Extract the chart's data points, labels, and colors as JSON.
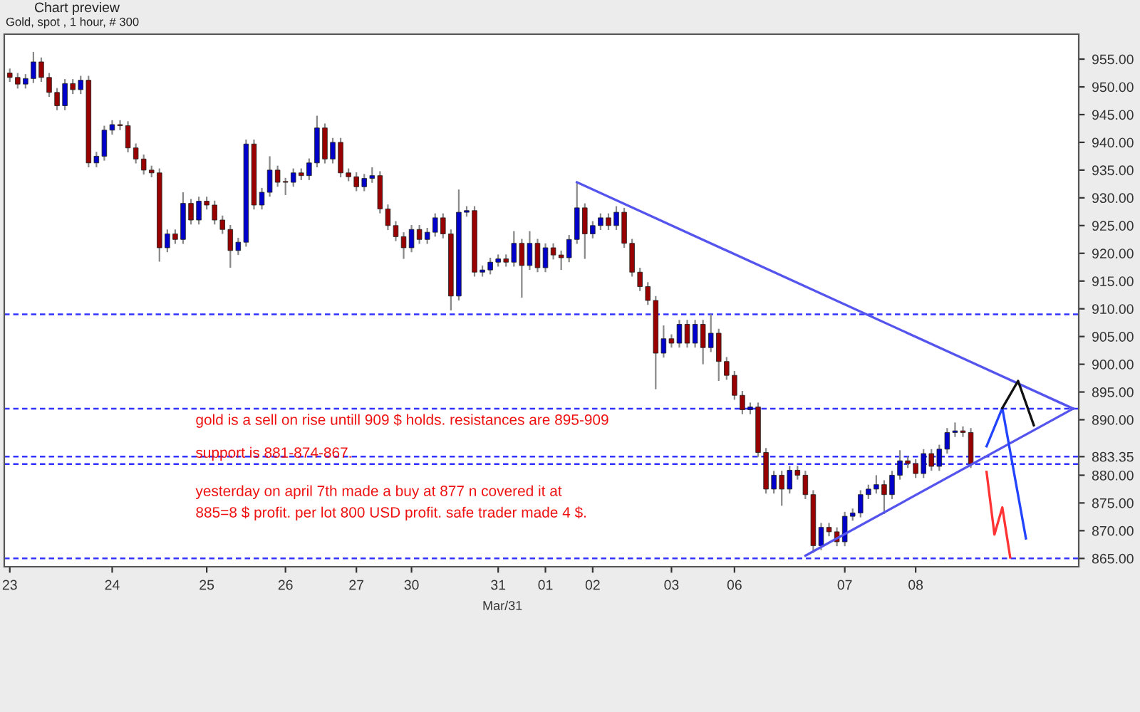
{
  "chart_data": {
    "type": "candlestick",
    "title": "Chart preview",
    "subtitle": "Gold, spot , 1 hour, # 300",
    "categories": [
      "23",
      null,
      null,
      null,
      null,
      null,
      null,
      null,
      null,
      null,
      null,
      null,
      null,
      "24",
      null,
      null,
      null,
      null,
      null,
      null,
      null,
      null,
      null,
      null,
      null,
      "25",
      null,
      null,
      null,
      null,
      null,
      null,
      null,
      null,
      null,
      "26",
      null,
      null,
      null,
      null,
      null,
      null,
      null,
      null,
      "27",
      null,
      null,
      null,
      null,
      null,
      null,
      "30",
      null,
      null,
      null,
      null,
      null,
      null,
      null,
      null,
      null,
      null,
      "31",
      null,
      null,
      null,
      null,
      null,
      "01",
      null,
      null,
      null,
      null,
      null,
      "02",
      null,
      null,
      null,
      null,
      null,
      null,
      null,
      null,
      null,
      "03",
      null,
      null,
      null,
      null,
      null,
      null,
      null,
      "06",
      null,
      null,
      null,
      null,
      null,
      null,
      null,
      null,
      null,
      null,
      null,
      null,
      null,
      "07",
      null,
      null,
      null,
      null,
      null,
      null,
      null,
      null,
      "08",
      null,
      null,
      null,
      null,
      null,
      null,
      null,
      null,
      null,
      null,
      null,
      null,
      null,
      null,
      null,
      null,
      null,
      null,
      null,
      null
    ],
    "ylim": [
      863.5,
      959.5
    ],
    "yticks": [
      {
        "value": 865,
        "label": "865.00"
      },
      {
        "value": 870,
        "label": "870.00"
      },
      {
        "value": 875,
        "label": "875.00"
      },
      {
        "value": 880,
        "label": "880.00"
      },
      {
        "value": 883.35,
        "label": "883.35"
      },
      {
        "value": 890,
        "label": "890.00"
      },
      {
        "value": 895,
        "label": "895.00"
      },
      {
        "value": 900,
        "label": "900.00"
      },
      {
        "value": 905,
        "label": "905.00"
      },
      {
        "value": 910,
        "label": "910.00"
      },
      {
        "value": 915,
        "label": "915.00"
      },
      {
        "value": 920,
        "label": "920.00"
      },
      {
        "value": 925,
        "label": "925.00"
      },
      {
        "value": 930,
        "label": "930.00"
      },
      {
        "value": 935,
        "label": "935.00"
      },
      {
        "value": 940,
        "label": "940.00"
      },
      {
        "value": 945,
        "label": "945.00"
      },
      {
        "value": 950,
        "label": "950.00"
      },
      {
        "value": 955,
        "label": "955.00"
      }
    ],
    "grid": false,
    "legend": false,
    "ref_lines": [
      {
        "axis": "y",
        "value": 909,
        "color": "#3333ff",
        "line_style": "dashed"
      },
      {
        "axis": "y",
        "value": 892,
        "color": "#3333ff",
        "line_style": "dashed"
      },
      {
        "axis": "y",
        "value": 883.35,
        "color": "#3333ff",
        "line_style": "dashed"
      },
      {
        "axis": "y",
        "value": 882,
        "color": "#3333ff",
        "line_style": "dashed"
      },
      {
        "axis": "y",
        "value": 865,
        "color": "#3333ff",
        "line_style": "dashed"
      }
    ],
    "annotations": [
      "Mar/31",
      "gold is a sell on rise untill 909 $ holds. resistances are 895-909",
      "support is 881-874-867.",
      "yesterday on april 7th made a buy at 877 n covered it at",
      "885=8 $ profit. per lot 800 USD profit. safe trader made 4 $."
    ],
    "series": [
      {
        "colors": [
          "#990000",
          "#990000",
          "#0000cc",
          "#0000cc",
          "#990000",
          "#990000",
          "#990000",
          "#0000cc",
          "#990000",
          "#0000cc",
          "#990000",
          "#0000cc",
          "#0000cc",
          "#0000cc",
          "#990000",
          "#990000",
          "#990000",
          "#990000",
          "#990000",
          "#990000",
          "#0000cc",
          "#990000",
          "#0000cc",
          "#990000",
          "#0000cc",
          "#990000",
          "#990000",
          "#990000",
          "#990000",
          "#0000cc",
          "#0000cc",
          "#990000",
          "#0000cc",
          "#0000cc",
          "#990000",
          "#990000",
          "#0000cc",
          "#990000",
          "#0000cc",
          "#0000cc",
          "#990000",
          "#0000cc",
          "#990000",
          "#990000",
          "#990000",
          "#0000cc",
          "#0000cc",
          "#990000",
          "#990000",
          "#990000",
          "#990000",
          "#0000cc",
          "#990000",
          "#0000cc",
          "#0000cc",
          "#990000",
          "#990000",
          "#0000cc",
          "#0000cc",
          "#990000",
          "#0000cc",
          "#0000cc",
          "#0000cc",
          "#990000",
          "#0000cc",
          "#990000",
          "#0000cc",
          "#990000",
          "#0000cc",
          "#990000",
          "#990000",
          "#0000cc",
          "#0000cc",
          "#990000",
          "#0000cc",
          "#0000cc",
          "#990000",
          "#0000cc",
          "#990000",
          "#990000",
          "#990000",
          "#990000",
          "#990000",
          "#0000cc",
          "#990000",
          "#0000cc",
          "#990000",
          "#0000cc",
          "#990000",
          "#0000cc",
          "#990000",
          "#990000",
          "#990000",
          "#990000",
          "#0000cc",
          "#990000",
          "#990000",
          "#0000cc",
          "#990000",
          "#0000cc",
          "#990000",
          "#990000",
          "#990000",
          "#0000cc",
          "#990000",
          "#990000",
          "#0000cc",
          "#0000cc",
          "#0000cc",
          "#0000cc",
          "#0000cc",
          "#990000",
          "#0000cc",
          "#0000cc",
          "#990000",
          "#990000",
          "#0000cc",
          "#990000",
          "#0000cc",
          "#0000cc",
          "#0000cc",
          "#990000",
          "#990000",
          null,
          null,
          null,
          null,
          null,
          null,
          null,
          null,
          null,
          null,
          null,
          null,
          null
        ],
        "ohlc": [
          [
            952.5,
            953.3,
            950.9,
            951.7
          ],
          [
            951.7,
            952.5,
            949.7,
            950.5
          ],
          [
            950.5,
            952.3,
            949.7,
            951.5
          ],
          [
            951.5,
            956.3,
            950.7,
            954.5
          ],
          [
            954.5,
            955.3,
            950.9,
            951.7
          ],
          [
            951.7,
            952.5,
            948.2,
            949
          ],
          [
            949,
            949.8,
            945.8,
            946.6
          ],
          [
            946.6,
            951.4,
            945.8,
            950.6
          ],
          [
            950.6,
            951.4,
            948.7,
            949.5
          ],
          [
            949.5,
            952,
            948.7,
            951.2
          ],
          [
            951.2,
            952,
            935.5,
            936.3
          ],
          [
            936.3,
            938.3,
            935.5,
            937.5
          ],
          [
            937.5,
            943,
            936.7,
            942.2
          ],
          [
            942.2,
            944,
            941.4,
            943.2
          ],
          [
            943.2,
            944,
            942.2,
            943
          ],
          [
            943,
            943.8,
            938.2,
            939
          ],
          [
            939,
            939.8,
            936.2,
            937
          ],
          [
            937,
            937.8,
            934.2,
            935
          ],
          [
            935,
            935.8,
            933.7,
            934.5
          ],
          [
            934.5,
            935.3,
            918.5,
            921
          ],
          [
            921,
            924.3,
            920.2,
            923.5
          ],
          [
            923.5,
            924.3,
            921.7,
            922.5
          ],
          [
            922.5,
            931,
            921.7,
            929
          ],
          [
            929,
            929.8,
            925.2,
            926
          ],
          [
            926,
            930.2,
            925.2,
            929.4
          ],
          [
            929.4,
            930.2,
            927.9,
            928.7
          ],
          [
            928.7,
            929.5,
            925.2,
            926
          ],
          [
            926,
            926.8,
            923.5,
            924.3
          ],
          [
            924.3,
            925.1,
            917.4,
            920.5
          ],
          [
            920.5,
            922.8,
            919.7,
            922
          ],
          [
            922,
            940.5,
            921.2,
            939.7
          ],
          [
            939.7,
            940.5,
            927.9,
            928.7
          ],
          [
            928.7,
            931.8,
            927.9,
            931
          ],
          [
            931,
            937.5,
            930.2,
            935
          ],
          [
            935,
            935.8,
            932,
            932.8
          ],
          [
            932.8,
            933.6,
            930.5,
            932.8
          ],
          [
            932.8,
            935.3,
            932,
            934.5
          ],
          [
            934.5,
            935.3,
            933.2,
            934
          ],
          [
            934,
            937.1,
            933.2,
            936.3
          ],
          [
            936.3,
            944.8,
            935.5,
            942.6
          ],
          [
            942.6,
            943.4,
            936.2,
            937
          ],
          [
            937,
            940.8,
            936.2,
            940
          ],
          [
            940,
            940.8,
            933.7,
            934.5
          ],
          [
            934.5,
            935.3,
            933,
            933.8
          ],
          [
            933.8,
            934.6,
            931.2,
            932
          ],
          [
            932,
            934.3,
            931.2,
            933.5
          ],
          [
            933.5,
            935.5,
            932.7,
            934
          ],
          [
            934,
            934.8,
            927.2,
            928
          ],
          [
            928,
            928.8,
            924.2,
            925
          ],
          [
            925,
            925.8,
            922.2,
            923
          ],
          [
            923,
            923.8,
            919,
            921
          ],
          [
            921,
            925.1,
            920.2,
            924.3
          ],
          [
            924.3,
            925.1,
            921.7,
            922.5
          ],
          [
            922.5,
            924.6,
            921.7,
            923.8
          ],
          [
            923.8,
            927.2,
            923,
            926.4
          ],
          [
            926.4,
            927.2,
            922.7,
            923.5
          ],
          [
            923.5,
            924.3,
            909.7,
            912.3
          ],
          [
            912.3,
            931.5,
            911.5,
            927.4
          ],
          [
            927.4,
            928.5,
            926.6,
            927.7
          ],
          [
            927.7,
            928.5,
            915.8,
            916.6
          ],
          [
            916.6,
            917.8,
            915.8,
            917
          ],
          [
            917,
            919.2,
            916.2,
            918.4
          ],
          [
            918.4,
            919.8,
            917.6,
            919
          ],
          [
            919,
            919.8,
            917.6,
            918.4
          ],
          [
            918.4,
            924,
            917.6,
            921.8
          ],
          [
            921.8,
            922.6,
            912,
            917.8
          ],
          [
            917.8,
            924,
            917,
            921.8
          ],
          [
            921.8,
            922.6,
            916.6,
            917.4
          ],
          [
            917.4,
            921.8,
            916.6,
            921
          ],
          [
            921,
            921.8,
            918.9,
            919.7
          ],
          [
            919.7,
            920.5,
            917,
            919.2
          ],
          [
            919.2,
            923.3,
            918.4,
            922.5
          ],
          [
            922.5,
            932.8,
            921.7,
            928.2
          ],
          [
            928.2,
            929,
            919,
            923.5
          ],
          [
            923.5,
            925.8,
            922.7,
            925
          ],
          [
            925,
            927.2,
            924.2,
            926.4
          ],
          [
            926.4,
            927.2,
            924.2,
            925
          ],
          [
            925,
            928.5,
            924.2,
            927.4
          ],
          [
            927.4,
            928.2,
            921,
            921.8
          ],
          [
            921.8,
            922.6,
            915.8,
            916.6
          ],
          [
            916.6,
            917.4,
            913.2,
            914
          ],
          [
            914,
            914.8,
            910.7,
            911.5
          ],
          [
            911.5,
            912.3,
            895.5,
            902
          ],
          [
            902,
            907,
            901.2,
            904.6
          ],
          [
            904.6,
            905.4,
            903,
            903.8
          ],
          [
            903.8,
            908,
            903,
            907.2
          ],
          [
            907.2,
            908,
            903,
            903.8
          ],
          [
            903.8,
            908,
            903,
            907.2
          ],
          [
            907.2,
            908,
            900,
            903
          ],
          [
            903,
            909,
            902.2,
            905.6
          ],
          [
            905.6,
            906.4,
            897,
            900.5
          ],
          [
            900.5,
            901.3,
            897.2,
            898
          ],
          [
            898,
            898.8,
            893.6,
            894.4
          ],
          [
            894.4,
            895.2,
            891,
            891.8
          ],
          [
            891.8,
            893.1,
            891,
            892.3
          ],
          [
            892.3,
            893.1,
            883.3,
            884.1
          ],
          [
            884.1,
            884.9,
            876.7,
            877.5
          ],
          [
            877.5,
            880.8,
            876.7,
            880
          ],
          [
            880,
            880.8,
            874.5,
            877.5
          ],
          [
            877.5,
            881.7,
            876.7,
            880.9
          ],
          [
            880.9,
            881.7,
            879.2,
            880
          ],
          [
            880,
            880.8,
            875.7,
            876.5
          ],
          [
            876.5,
            877.3,
            866,
            867.3
          ],
          [
            867.3,
            871.4,
            866.5,
            870.6
          ],
          [
            870.6,
            871.4,
            869,
            869.8
          ],
          [
            869.8,
            870.6,
            867.2,
            868
          ],
          [
            868,
            873.4,
            867.2,
            872.6
          ],
          [
            872.6,
            874,
            871.8,
            873.2
          ],
          [
            873.2,
            877.3,
            872.4,
            876.5
          ],
          [
            876.5,
            878.3,
            875.7,
            877.5
          ],
          [
            877.5,
            880,
            876.7,
            878.3
          ],
          [
            878.3,
            879.1,
            873,
            876.5
          ],
          [
            876.5,
            880.8,
            875.7,
            880
          ],
          [
            880,
            884.5,
            879.2,
            882.6
          ],
          [
            882.6,
            883.4,
            881.3,
            882.1
          ],
          [
            882.1,
            882.9,
            879.5,
            880.3
          ],
          [
            880.3,
            884.7,
            879.5,
            883.9
          ],
          [
            883.9,
            884.7,
            880.8,
            881.6
          ],
          [
            881.6,
            885.5,
            880.8,
            884.7
          ],
          [
            884.7,
            888.5,
            883.9,
            887.7
          ],
          [
            887.7,
            889.5,
            886.9,
            888
          ],
          [
            888,
            888.8,
            886.9,
            887.7
          ],
          [
            887.7,
            888.5,
            881.3,
            882.1
          ],
          null,
          null,
          null,
          null,
          null,
          null,
          null,
          null,
          null,
          null,
          null,
          null,
          null
        ]
      },
      {
        "type": "line",
        "color": "#5555ee",
        "values": [
          null,
          null,
          null,
          null,
          null,
          null,
          null,
          null,
          null,
          null,
          null,
          null,
          null,
          null,
          null,
          null,
          null,
          null,
          null,
          null,
          null,
          null,
          null,
          null,
          null,
          null,
          null,
          null,
          null,
          null,
          null,
          null,
          null,
          null,
          null,
          null,
          null,
          null,
          null,
          null,
          null,
          null,
          null,
          null,
          null,
          null,
          null,
          null,
          null,
          null,
          null,
          null,
          null,
          null,
          null,
          null,
          null,
          null,
          null,
          null,
          null,
          null,
          null,
          null,
          null,
          null,
          null,
          null,
          null,
          null,
          null,
          null,
          932.8,
          null,
          null,
          null,
          null,
          null,
          null,
          null,
          null,
          null,
          null,
          null,
          null,
          null,
          null,
          null,
          null,
          null,
          null,
          null,
          null,
          null,
          null,
          null,
          null,
          null,
          null,
          null,
          null,
          null,
          null,
          null,
          null,
          null,
          null,
          null,
          null,
          null,
          null,
          null,
          null,
          null,
          null,
          null,
          null,
          null,
          null,
          null,
          null,
          null,
          null,
          null,
          null,
          null,
          null,
          null,
          null,
          null,
          null,
          null,
          null,
          null,
          null,
          892
        ]
      },
      {
        "type": "line",
        "color": "#5555ee",
        "values": [
          null,
          null,
          null,
          null,
          null,
          null,
          null,
          null,
          null,
          null,
          null,
          null,
          null,
          null,
          null,
          null,
          null,
          null,
          null,
          null,
          null,
          null,
          null,
          null,
          null,
          null,
          null,
          null,
          null,
          null,
          null,
          null,
          null,
          null,
          null,
          null,
          null,
          null,
          null,
          null,
          null,
          null,
          null,
          null,
          null,
          null,
          null,
          null,
          null,
          null,
          null,
          null,
          null,
          null,
          null,
          null,
          null,
          null,
          null,
          null,
          null,
          null,
          null,
          null,
          null,
          null,
          null,
          null,
          null,
          null,
          null,
          null,
          null,
          null,
          null,
          null,
          null,
          null,
          null,
          null,
          null,
          null,
          null,
          null,
          null,
          null,
          null,
          null,
          null,
          null,
          null,
          null,
          null,
          null,
          null,
          null,
          null,
          null,
          null,
          null,
          null,
          865.5,
          null,
          null,
          null,
          null,
          null,
          null,
          null,
          null,
          null,
          null,
          null,
          null,
          null,
          null,
          null,
          null,
          null,
          null,
          null,
          null,
          null,
          null,
          null,
          null,
          null,
          null,
          null,
          null,
          null,
          null,
          null,
          null,
          null,
          892
        ]
      },
      {
        "type": "line",
        "color": "#2244ff",
        "values": [
          null,
          null,
          null,
          null,
          null,
          null,
          null,
          null,
          null,
          null,
          null,
          null,
          null,
          null,
          null,
          null,
          null,
          null,
          null,
          null,
          null,
          null,
          null,
          null,
          null,
          null,
          null,
          null,
          null,
          null,
          null,
          null,
          null,
          null,
          null,
          null,
          null,
          null,
          null,
          null,
          null,
          null,
          null,
          null,
          null,
          null,
          null,
          null,
          null,
          null,
          null,
          null,
          null,
          null,
          null,
          null,
          null,
          null,
          null,
          null,
          null,
          null,
          null,
          null,
          null,
          null,
          null,
          null,
          null,
          null,
          null,
          null,
          null,
          null,
          null,
          null,
          null,
          null,
          null,
          null,
          null,
          null,
          null,
          null,
          null,
          null,
          null,
          null,
          null,
          null,
          null,
          null,
          null,
          null,
          null,
          null,
          null,
          null,
          null,
          null,
          null,
          null,
          null,
          null,
          null,
          null,
          null,
          null,
          null,
          null,
          null,
          null,
          null,
          null,
          null,
          null,
          null,
          null,
          null,
          null,
          null,
          null,
          null,
          null,
          885.2,
          null,
          892.1,
          null,
          null,
          868.6,
          null,
          null,
          null,
          null,
          null,
          null
        ]
      },
      {
        "type": "line",
        "color": "#111111",
        "values": [
          null,
          null,
          null,
          null,
          null,
          null,
          null,
          null,
          null,
          null,
          null,
          null,
          null,
          null,
          null,
          null,
          null,
          null,
          null,
          null,
          null,
          null,
          null,
          null,
          null,
          null,
          null,
          null,
          null,
          null,
          null,
          null,
          null,
          null,
          null,
          null,
          null,
          null,
          null,
          null,
          null,
          null,
          null,
          null,
          null,
          null,
          null,
          null,
          null,
          null,
          null,
          null,
          null,
          null,
          null,
          null,
          null,
          null,
          null,
          null,
          null,
          null,
          null,
          null,
          null,
          null,
          null,
          null,
          null,
          null,
          null,
          null,
          null,
          null,
          null,
          null,
          null,
          null,
          null,
          null,
          null,
          null,
          null,
          null,
          null,
          null,
          null,
          null,
          null,
          null,
          null,
          null,
          null,
          null,
          null,
          null,
          null,
          null,
          null,
          null,
          null,
          null,
          null,
          null,
          null,
          null,
          null,
          null,
          null,
          null,
          null,
          null,
          null,
          null,
          null,
          null,
          null,
          null,
          null,
          null,
          null,
          null,
          null,
          null,
          null,
          null,
          892.1,
          null,
          897,
          null,
          889,
          null,
          null,
          null,
          null,
          null
        ]
      },
      {
        "type": "line",
        "color": "#ff3333",
        "values": [
          null,
          null,
          null,
          null,
          null,
          null,
          null,
          null,
          null,
          null,
          null,
          null,
          null,
          null,
          null,
          null,
          null,
          null,
          null,
          null,
          null,
          null,
          null,
          null,
          null,
          null,
          null,
          null,
          null,
          null,
          null,
          null,
          null,
          null,
          null,
          null,
          null,
          null,
          null,
          null,
          null,
          null,
          null,
          null,
          null,
          null,
          null,
          null,
          null,
          null,
          null,
          null,
          null,
          null,
          null,
          null,
          null,
          null,
          null,
          null,
          null,
          null,
          null,
          null,
          null,
          null,
          null,
          null,
          null,
          null,
          null,
          null,
          null,
          null,
          null,
          null,
          null,
          null,
          null,
          null,
          null,
          null,
          null,
          null,
          null,
          null,
          null,
          null,
          null,
          null,
          null,
          null,
          null,
          null,
          null,
          null,
          null,
          null,
          null,
          null,
          null,
          null,
          null,
          null,
          null,
          null,
          null,
          null,
          null,
          null,
          null,
          null,
          null,
          null,
          null,
          null,
          null,
          null,
          null,
          null,
          null,
          null,
          null,
          null,
          880.6,
          869.3,
          874.2,
          865.2,
          null,
          null,
          null,
          null,
          null,
          null,
          null,
          null
        ]
      }
    ]
  }
}
